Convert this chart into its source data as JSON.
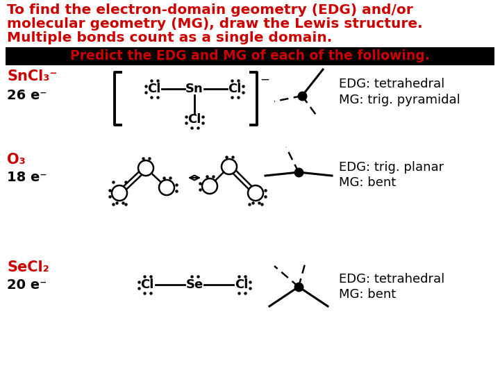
{
  "bg_color": "#ffffff",
  "title_lines": [
    "To find the electron-domain geometry (EDG) and/or",
    "molecular geometry (MG), draw the Lewis structure.",
    "Multiple bonds count as a single domain."
  ],
  "title_color": "#cc0000",
  "title_fontsize": 14.5,
  "banner_text": "Predict the EDG and MG of each of the following.",
  "banner_bg": "#000000",
  "banner_fg": "#cc0000",
  "banner_fontsize": 13.5,
  "rows": [
    {
      "formula": "SnCl₃⁻",
      "electrons": "26 e⁻",
      "edg": "EDG: tetrahedral",
      "mg": "MG: trig. pyramidal",
      "formula_color": "#cc0000",
      "label_color": "#000000"
    },
    {
      "formula": "O₃",
      "electrons": "18 e⁻",
      "edg": "EDG: trig. planar",
      "mg": "MG: bent",
      "formula_color": "#cc0000",
      "label_color": "#000000"
    },
    {
      "formula": "SeCl₂",
      "electrons": "20 e⁻",
      "edg": "EDG: tetrahedral",
      "mg": "MG: bent",
      "formula_color": "#cc0000",
      "label_color": "#000000"
    }
  ]
}
